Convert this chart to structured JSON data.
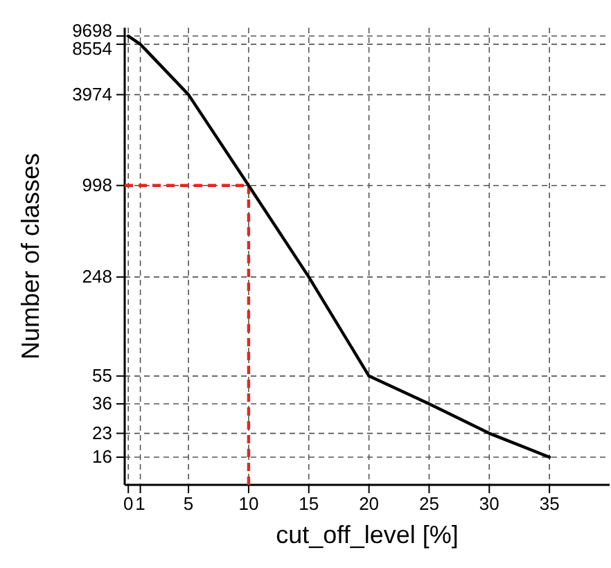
{
  "chart_data": {
    "type": "line",
    "xlabel": "cut_off_level [%]",
    "ylabel": "Number of classes",
    "x": [
      0,
      1,
      5,
      10,
      15,
      20,
      25,
      30,
      35
    ],
    "series": [
      {
        "color": "#000000",
        "values": [
          9698,
          8554,
          3974,
          998,
          248,
          55,
          36,
          23,
          16
        ]
      }
    ],
    "xlim": [
      -0.3,
      40
    ],
    "xticks": [
      0,
      1,
      5,
      10,
      15,
      20,
      25,
      30,
      35
    ],
    "ylim": [
      10.5,
      11000
    ],
    "yticks": [
      16,
      23,
      36,
      55,
      248,
      998,
      3974,
      8554,
      9698
    ],
    "log": "y",
    "grid": true,
    "marker": "none",
    "line_style": "solid",
    "ref_lines": [
      {
        "axis": "x",
        "value": 10,
        "color": "#e8251e",
        "line_style": "dashed"
      },
      {
        "axis": "y",
        "value": 998,
        "color": "#e8251e",
        "line_style": "dashed"
      }
    ]
  }
}
